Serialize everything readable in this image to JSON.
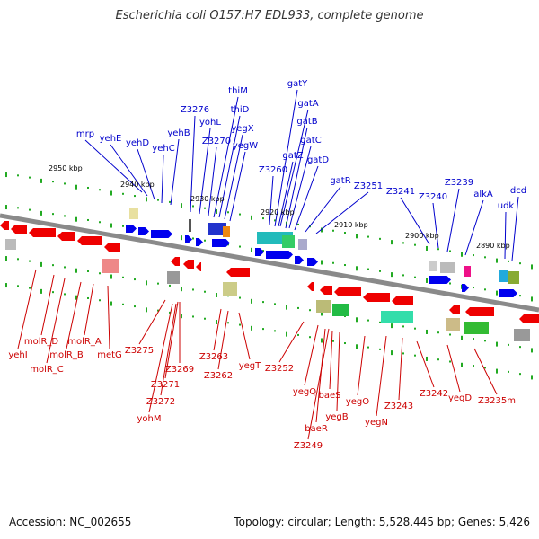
{
  "title": "Escherichia coli O157:H7 EDL933, complete genome",
  "accession": "Accession: NC_002655",
  "summary": "Topology: circular; Length: 5,528,445 bp; Genes: 5,426",
  "colors": {
    "forward_label": "#0000cc",
    "reverse_label": "#cc0000",
    "forward_gene": "#0000ee",
    "reverse_gene": "#ee0000",
    "backbone": "#888888",
    "tick": "#22aa22"
  },
  "kbp_labels": [
    "2950 kbp",
    "2940 kbp",
    "2930 kbp",
    "2920 kbp",
    "2910 kbp",
    "2900 kbp",
    "2890 kbp"
  ],
  "forward_genes": [
    "mrp",
    "yehE",
    "yehD",
    "yehC",
    "yehB",
    "Z3276",
    "yohL",
    "Z3270",
    "thiM",
    "thiD",
    "yegX",
    "yegW",
    "Z3260",
    "gatY",
    "gatA",
    "gatB",
    "gatZ",
    "gatC",
    "gatD",
    "gatR",
    "Z3251",
    "Z3241",
    "Z3240",
    "Z3239",
    "alkA",
    "udk",
    "dcd"
  ],
  "reverse_genes": [
    "yehI",
    "molR_D",
    "molR_C",
    "molR_B",
    "molR_A",
    "metG",
    "Z3275",
    "Z3269",
    "Z3271",
    "Z3272",
    "yohM",
    "Z3263",
    "Z3262",
    "yegT",
    "Z3252",
    "yegQ",
    "baeR",
    "Z3249",
    "baeS",
    "yegB",
    "yegO",
    "yegN",
    "Z3243",
    "Z3242",
    "yegD",
    "Z3235m"
  ]
}
